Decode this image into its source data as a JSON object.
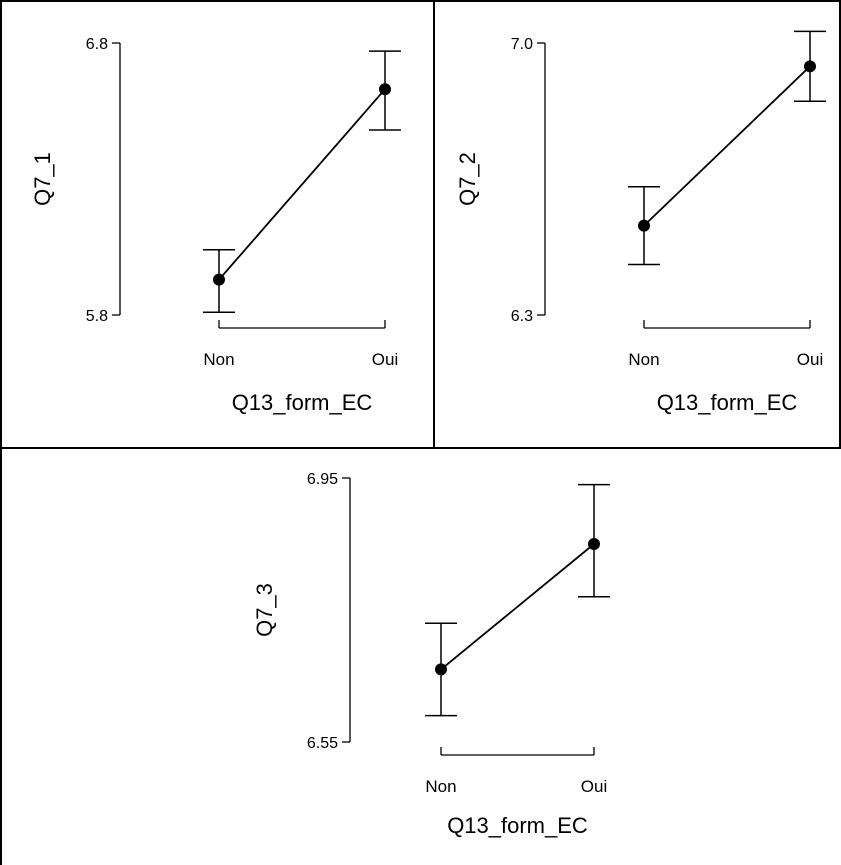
{
  "chart_data": [
    {
      "type": "line",
      "title": "",
      "xlabel": "Q13_form_EC",
      "ylabel": "Q7_1",
      "categories": [
        "Non",
        "Oui"
      ],
      "values": [
        5.93,
        6.63
      ],
      "error_low": [
        5.81,
        6.48
      ],
      "error_high": [
        6.04,
        6.77
      ],
      "yticks": [
        "6.8",
        "5.8"
      ],
      "ylim": [
        5.8,
        6.8
      ]
    },
    {
      "type": "line",
      "title": "",
      "xlabel": "Q13_form_EC",
      "ylabel": "Q7_2",
      "categories": [
        "Non",
        "Oui"
      ],
      "values": [
        6.53,
        6.94
      ],
      "error_low": [
        6.43,
        6.85
      ],
      "error_high": [
        6.63,
        7.03
      ],
      "yticks": [
        "7.0",
        "6.3"
      ],
      "ylim": [
        6.3,
        7.0
      ]
    },
    {
      "type": "line",
      "title": "",
      "xlabel": "Q13_form_EC",
      "ylabel": "Q7_3",
      "categories": [
        "Non",
        "Oui"
      ],
      "values": [
        6.66,
        6.85
      ],
      "error_low": [
        6.59,
        6.77
      ],
      "error_high": [
        6.73,
        6.94
      ],
      "yticks": [
        "6.95",
        "6.55"
      ],
      "ylim": [
        6.55,
        6.95
      ]
    }
  ]
}
